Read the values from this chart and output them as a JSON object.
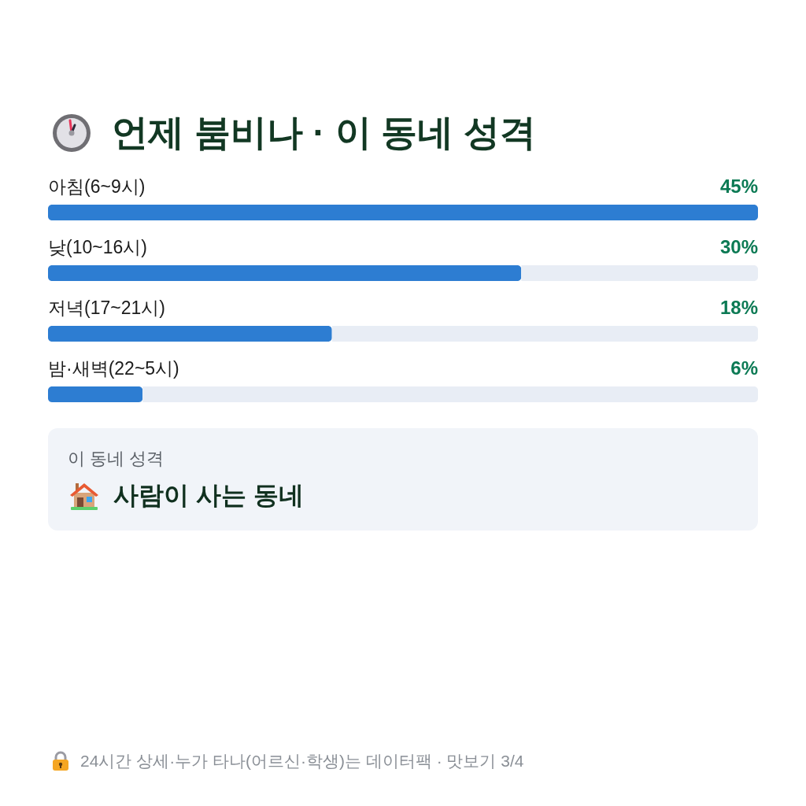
{
  "chart_data": [
    {
      "type": "bar",
      "orientation": "horizontal",
      "title": "언제 붐비나 · 이 동네 성격",
      "categories": [
        "아침(6~9시)",
        "낮(10~16시)",
        "저녁(17~21시)",
        "밤·새벽(22~5시)"
      ],
      "values": [
        45,
        30,
        18,
        6
      ],
      "value_labels": [
        "45%",
        "30%",
        "18%",
        "6%"
      ],
      "color": "#2d7dd2",
      "xlim": [
        0,
        45
      ],
      "annotations": [
        "24시간 상세·누가 타나(어르신·학생)는 데이터팩 · 맛보기 3/4"
      ]
    },
    {
      "type": "other",
      "title": "이 동네 성격",
      "annotations": [
        "사람이 사는 동네"
      ]
    }
  ]
}
